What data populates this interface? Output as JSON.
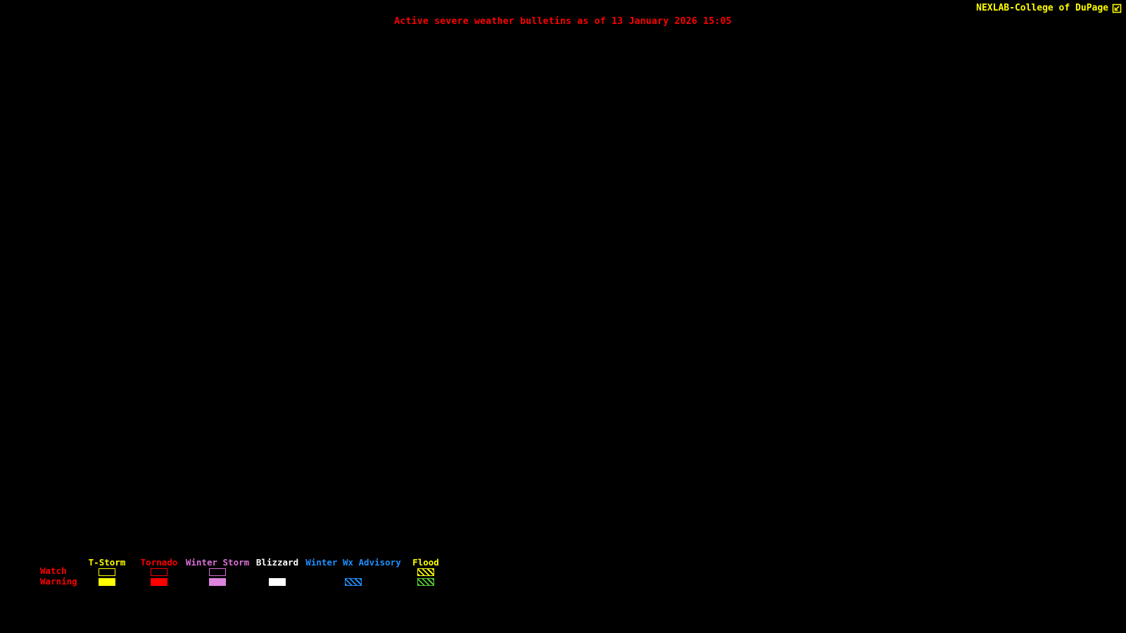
{
  "header": {
    "title": "Active severe weather bulletins as of 13 January 2026 15:05",
    "color": "#ff0000"
  },
  "brand": {
    "name": "NEXLAB-College of DuPage",
    "color": "#ffff00",
    "icon": "arrow-box-icon"
  },
  "map": {
    "background": "#000000"
  },
  "legend": {
    "label_color": "#ff0000",
    "rows": [
      {
        "label": "Watch"
      },
      {
        "label": "Warning"
      }
    ],
    "columns": [
      {
        "label": "T-Storm",
        "color": "#ffff00",
        "watch_swatch": "outline",
        "warning_swatch": "filled"
      },
      {
        "label": "Tornado",
        "color": "#ff0000",
        "watch_swatch": "outline",
        "warning_swatch": "filled"
      },
      {
        "label": "Winter Storm",
        "color": "#da70d6",
        "warning_fill": "#dd84dd",
        "watch_swatch": "outline",
        "warning_swatch": "filled"
      },
      {
        "label": "Blizzard",
        "color": "#ffffff",
        "watch_swatch": "none",
        "warning_swatch": "filled"
      },
      {
        "label": "Winter Wx Advisory",
        "color": "#1e90ff",
        "watch_swatch": "none",
        "warning_swatch": "hatched"
      },
      {
        "label": "Flood",
        "color": "#ffff00",
        "warning_color": "#55cc33",
        "watch_swatch": "hatched",
        "warning_swatch": "hatched"
      }
    ]
  }
}
